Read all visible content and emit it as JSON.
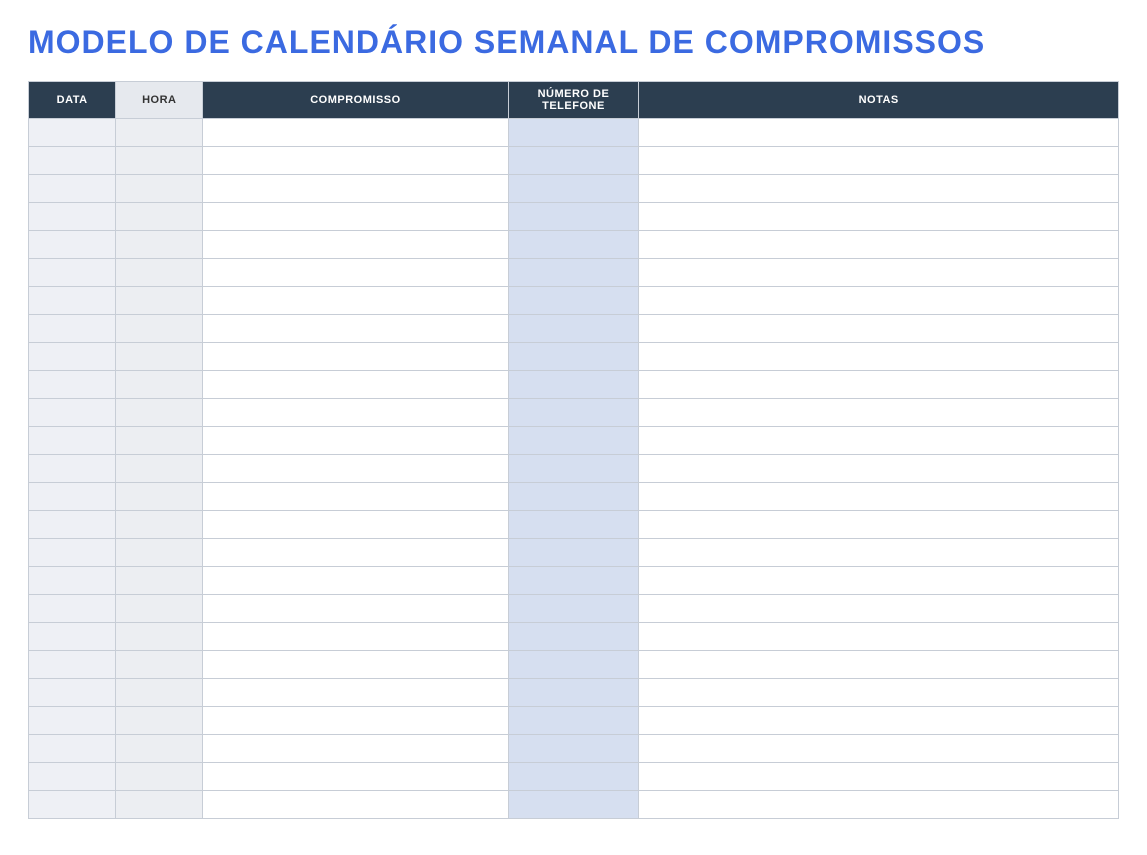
{
  "title": "MODELO DE CALENDÁRIO SEMANAL DE COMPROMISSOS",
  "title_color": "#3b6ae1",
  "table": {
    "type": "table",
    "row_count": 25,
    "border_color": "#c7cdd6",
    "header": {
      "background_dark": "#2c3e50",
      "text_dark": "#ffffff",
      "background_light": "#e6e9ee",
      "text_light": "#333333",
      "fontsize": 11
    },
    "columns": [
      {
        "key": "data",
        "label": "DATA",
        "width_pct": 8,
        "header_style": "dark",
        "cell_bg": "#eef0f5"
      },
      {
        "key": "hora",
        "label": "HORA",
        "width_pct": 8,
        "header_style": "light",
        "cell_bg": "#eceef2"
      },
      {
        "key": "compromisso",
        "label": "COMPROMISSO",
        "width_pct": 28,
        "header_style": "dark",
        "cell_bg": "#ffffff"
      },
      {
        "key": "telefone",
        "label": "NÚMERO DE TELEFONE",
        "width_pct": 12,
        "header_style": "dark",
        "cell_bg": "#d6dff0"
      },
      {
        "key": "notas",
        "label": "NOTAS",
        "width_pct": 44,
        "header_style": "dark",
        "cell_bg": "#ffffff"
      }
    ],
    "rows": []
  }
}
